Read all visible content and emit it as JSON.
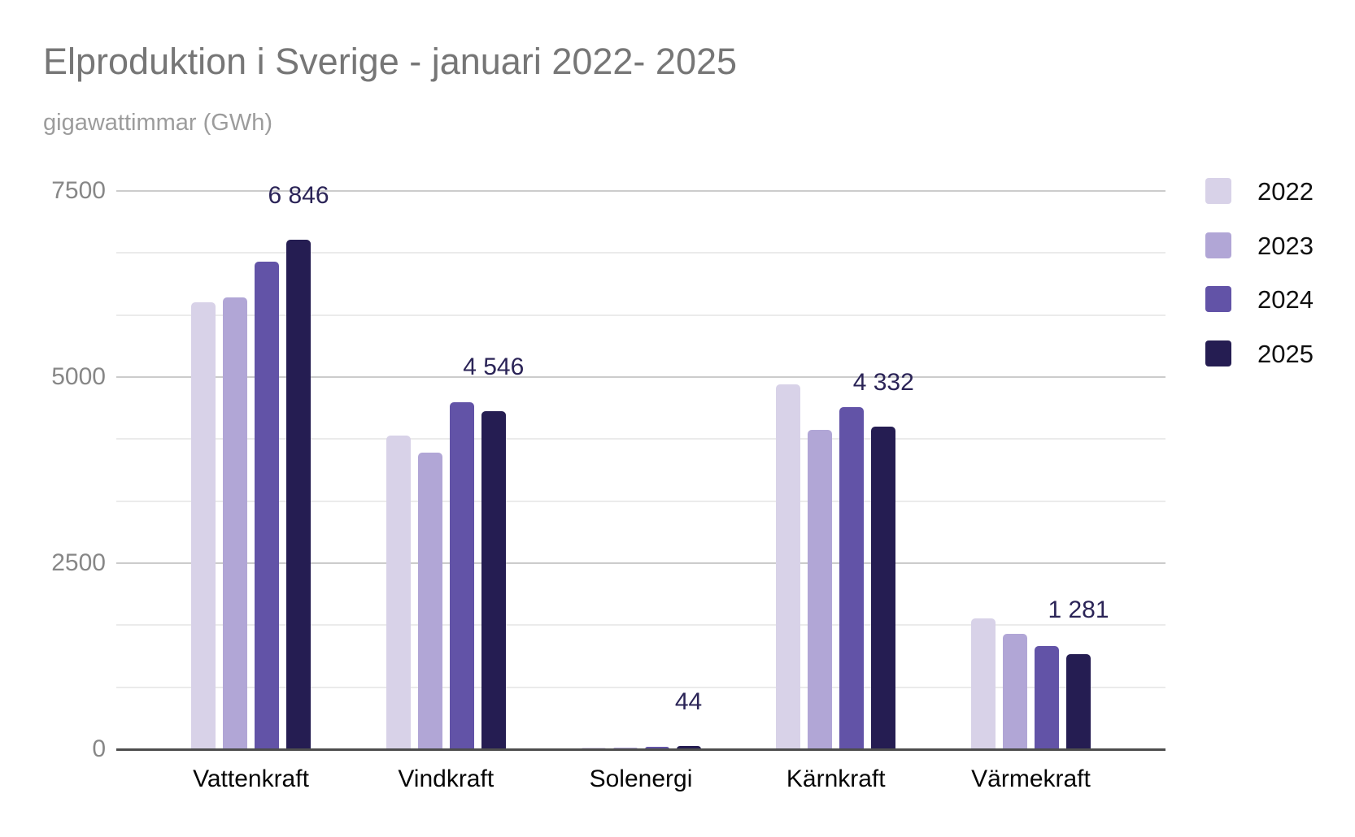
{
  "header": {
    "title": "Elproduktion i Sverige - januari 2022- 2025",
    "subtitle": "gigawattimmar (GWh)"
  },
  "colors": {
    "title_text": "#767676",
    "subtitle_text": "#9c9c9c",
    "data_label_text": "#2b2457",
    "axis_tick_text": "#878787",
    "category_text": "#060606",
    "axis_baseline": "#4d4d4d",
    "gridline_major": "#cccccc",
    "gridline_minor": "#ebebeb"
  },
  "chart_data": {
    "type": "bar",
    "title": "Elproduktion i Sverige - januari 2022- 2025",
    "subtitle": "gigawattimmar (GWh)",
    "ylabel": "gigawattimmar (GWh)",
    "xlabel": "",
    "categories": [
      "Vattenkraft",
      "Vindkraft",
      "Solenergi",
      "Kärnkraft",
      "Värmekraft"
    ],
    "series": [
      {
        "name": "2022",
        "color": "#d8d2e8",
        "values": [
          6000,
          4215,
          18,
          4900,
          1760
        ]
      },
      {
        "name": "2023",
        "color": "#b1a6d6",
        "values": [
          6070,
          3980,
          25,
          4290,
          1550
        ]
      },
      {
        "name": "2024",
        "color": "#6253a7",
        "values": [
          6550,
          4660,
          33,
          4600,
          1390
        ]
      },
      {
        "name": "2025",
        "color": "#251d52",
        "values": [
          6846,
          4546,
          44,
          4332,
          1281
        ]
      }
    ],
    "data_labels": {
      "series": "2025",
      "formatted_values": [
        "6 846",
        "4 546",
        "44",
        "4 332",
        "1 281"
      ]
    },
    "ylim": [
      0,
      7500
    ],
    "yticks": [
      0,
      2500,
      5000,
      7500
    ],
    "minor_gridline_step": 833.33,
    "grid": true,
    "legend_position": "right",
    "legend_entries": [
      "2022",
      "2023",
      "2024",
      "2025"
    ]
  }
}
